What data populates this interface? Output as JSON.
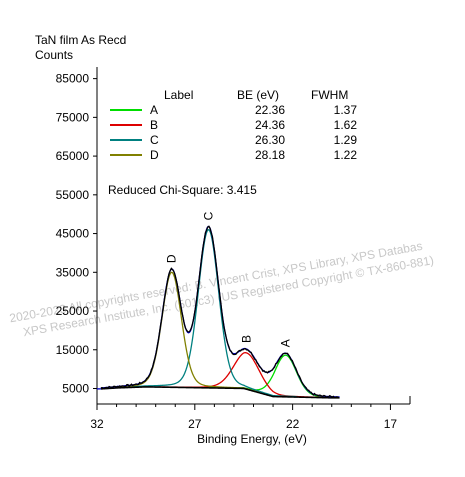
{
  "chart_data": {
    "type": "line",
    "title": "TaN film As Recd",
    "ylabel": "Counts",
    "xlabel": "Binding Energy, (eV)",
    "xlim": [
      32,
      16
    ],
    "ylim": [
      1000,
      88000
    ],
    "x_ticks": [
      32,
      27,
      22,
      17
    ],
    "y_ticks": [
      5000,
      15000,
      25000,
      35000,
      45000,
      55000,
      65000,
      75000,
      85000
    ],
    "x_reversed": true,
    "legend": {
      "position": "top-left",
      "headers": {
        "label": "Label",
        "be": "BE (eV)",
        "fwhm": "FWHM"
      },
      "rows": [
        {
          "label": "A",
          "be": "22.36",
          "fwhm": "1.37",
          "color": "#00dd00"
        },
        {
          "label": "B",
          "be": "24.36",
          "fwhm": "1.62",
          "color": "#dd0000"
        },
        {
          "label": "C",
          "be": "26.30",
          "fwhm": "1.29",
          "color": "#008080"
        },
        {
          "label": "D",
          "be": "28.18",
          "fwhm": "1.22",
          "color": "#808000"
        }
      ]
    },
    "annotation": "Reduced Chi-Square: 3.415",
    "watermark": [
      "2020-2023 All copyrights reserved: B. Vincent Crist,  XPS Library, XPS Databas",
      "XPS Research Institute, Inc. (501c3)  (US Registered Copyright © TX-860-881)"
    ],
    "series": [
      {
        "name": "A",
        "peak_center": 22.36,
        "peak_top": 13600,
        "color": "#00dd00"
      },
      {
        "name": "B",
        "peak_center": 24.36,
        "peak_top": 14200,
        "color": "#dd0000"
      },
      {
        "name": "C",
        "peak_center": 26.3,
        "peak_top": 46000,
        "color": "#008080"
      },
      {
        "name": "D",
        "peak_center": 28.18,
        "peak_top": 35000,
        "color": "#808000"
      }
    ],
    "background_color": "#000000",
    "envelope_color": "#0000cc"
  }
}
